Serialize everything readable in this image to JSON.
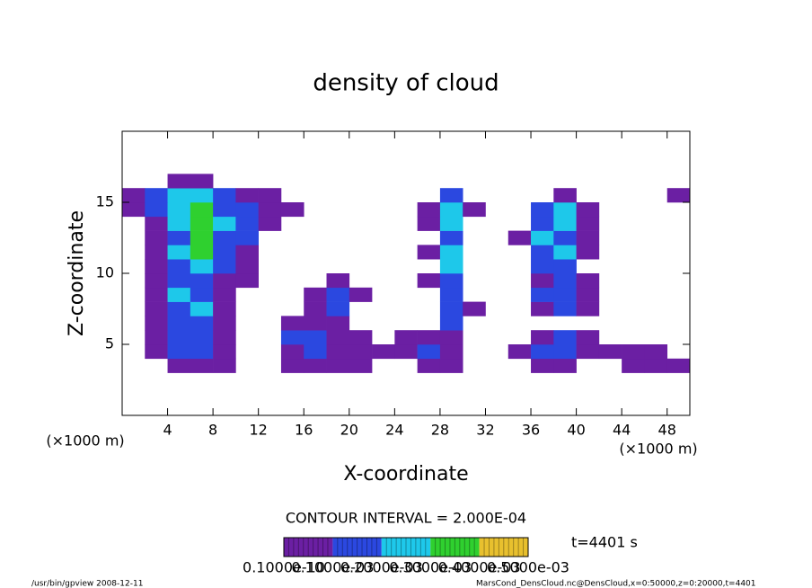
{
  "chart_data": {
    "type": "contour",
    "title": "density of cloud",
    "xlabel": "X-coordinate",
    "ylabel": "Z-coordinate",
    "x_unit": "(×1000 m)",
    "y_unit": "(×1000 m)",
    "xlim": [
      0,
      50
    ],
    "ylim": [
      0,
      20
    ],
    "xticks": [
      4,
      8,
      12,
      16,
      20,
      24,
      28,
      32,
      36,
      40,
      44,
      48
    ],
    "yticks": [
      5,
      10,
      15
    ],
    "contour_interval": "CONTOUR INTERVAL = 2.000E-04",
    "time_label": "t=4401 s",
    "levels": [
      {
        "value": 1e-11,
        "label": "0.1000e-10"
      },
      {
        "value": 0.0001,
        "label": "0.1000e-03"
      },
      {
        "value": 0.0002,
        "label": "0.2000e-03"
      },
      {
        "value": 0.0003,
        "label": "0.3000e-03"
      },
      {
        "value": 0.0004,
        "label": "0.4000e-03"
      },
      {
        "value": 0.0005,
        "label": "0.5000e-03"
      }
    ],
    "colors": [
      "#6b1fa3",
      "#2b48e0",
      "#1ec8ea",
      "#2fd02f",
      "#e8c02e"
    ],
    "footer_left": "/usr/bin/gpview   2008-12-11",
    "footer_right": "MarsCond_DensCloud.nc@DensCloud,x=0:50000,z=0:20000,t=4401",
    "field": [
      [
        0,
        0,
        0,
        0,
        0,
        0,
        0,
        0,
        0,
        0,
        0,
        0,
        0,
        0,
        0,
        0,
        0,
        0,
        0,
        0,
        0,
        0,
        0,
        0,
        0
      ],
      [
        0,
        0,
        0,
        0,
        0,
        0,
        0,
        0,
        0,
        0,
        0,
        0,
        0,
        0,
        0,
        0,
        0,
        0,
        0,
        0,
        0,
        0,
        0,
        0,
        0
      ],
      [
        0,
        0,
        0,
        0,
        0,
        0,
        0,
        0,
        0,
        0,
        0,
        0,
        0,
        0,
        0,
        0,
        0,
        0,
        0,
        0,
        0,
        0,
        0,
        0,
        0
      ],
      [
        0,
        0,
        5e-05,
        5e-05,
        5e-05,
        0,
        0,
        5e-05,
        5e-05,
        5e-05,
        5e-05,
        0,
        0,
        5e-05,
        5e-05,
        0,
        0,
        0,
        5e-05,
        5e-05,
        0,
        0,
        5e-05,
        5e-05,
        5e-05
      ],
      [
        0,
        5e-05,
        0.00015,
        0.00015,
        5e-05,
        0,
        0,
        5e-05,
        0.00015,
        5e-05,
        5e-05,
        5e-05,
        5e-05,
        0.00015,
        5e-05,
        0,
        0,
        5e-05,
        0.00015,
        0.00015,
        5e-05,
        5e-05,
        5e-05,
        5e-05,
        0
      ],
      [
        0,
        5e-05,
        0.00015,
        0.00015,
        5e-05,
        0,
        0,
        0.00015,
        0.00015,
        5e-05,
        5e-05,
        0,
        5e-05,
        5e-05,
        5e-05,
        0,
        0,
        0,
        5e-05,
        0.00015,
        5e-05,
        0,
        0,
        0,
        0
      ],
      [
        0,
        5e-05,
        0.00015,
        0.00015,
        5e-05,
        0,
        0,
        5e-05,
        5e-05,
        5e-05,
        0,
        0,
        0,
        0,
        0.00015,
        0,
        0,
        0,
        0,
        0,
        0,
        0,
        0,
        0,
        0
      ],
      [
        0,
        5e-05,
        0.00015,
        0.00025,
        5e-05,
        0,
        0,
        0,
        5e-05,
        0.00015,
        0,
        0,
        0,
        0,
        0.00015,
        5e-05,
        0,
        0,
        5e-05,
        0.00015,
        5e-05,
        0,
        0,
        0,
        0
      ],
      [
        0,
        5e-05,
        0.00025,
        0.00015,
        5e-05,
        0,
        0,
        0,
        5e-05,
        0.00015,
        5e-05,
        0,
        0,
        0,
        0.00015,
        0,
        0,
        0,
        0.00015,
        0.00015,
        5e-05,
        0,
        0,
        0,
        0
      ],
      [
        0,
        5e-05,
        0.00015,
        0.00015,
        5e-05,
        5e-05,
        0,
        0,
        0,
        5e-05,
        0,
        0,
        0,
        5e-05,
        0.00015,
        0,
        0,
        0,
        5e-05,
        0.00015,
        5e-05,
        0,
        0,
        0,
        0
      ],
      [
        0,
        5e-05,
        0.00015,
        0.00025,
        0.00015,
        5e-05,
        0,
        0,
        0,
        0,
        0,
        0,
        0,
        0,
        0.00025,
        0,
        0,
        0,
        0.00015,
        0.00015,
        0,
        0,
        0,
        0,
        0
      ],
      [
        0,
        5e-05,
        0.00025,
        0.00035,
        0.00015,
        5e-05,
        0,
        0,
        0,
        0,
        0,
        0,
        0,
        5e-05,
        0.00025,
        0,
        0,
        0,
        0.00015,
        0.00025,
        5e-05,
        0,
        0,
        0,
        0
      ],
      [
        0,
        5e-05,
        0.00015,
        0.00035,
        0.00015,
        0.00015,
        0,
        0,
        0,
        0,
        0,
        0,
        0,
        0,
        0.00015,
        0,
        0,
        5e-05,
        0.00025,
        0.00015,
        5e-05,
        0,
        0,
        0,
        0
      ],
      [
        0,
        5e-05,
        0.00025,
        0.00035,
        0.00025,
        0.00015,
        5e-05,
        0,
        0,
        0,
        0,
        0,
        0,
        5e-05,
        0.00025,
        0,
        0,
        0,
        0.00015,
        0.00025,
        5e-05,
        0,
        0,
        0,
        0
      ],
      [
        5e-05,
        0.00015,
        0.00025,
        0.00035,
        0.00015,
        0.00015,
        5e-05,
        5e-05,
        0,
        0,
        0,
        0,
        0,
        5e-05,
        0.00025,
        5e-05,
        0,
        0,
        0.00015,
        0.00025,
        5e-05,
        0,
        0,
        0,
        0
      ],
      [
        5e-05,
        0.00015,
        0.00025,
        0.00025,
        0.00015,
        5e-05,
        5e-05,
        0,
        0,
        0,
        0,
        0,
        0,
        0,
        0.00015,
        0,
        0,
        0,
        0,
        5e-05,
        0,
        0,
        0,
        0,
        5e-05
      ],
      [
        0,
        0,
        5e-05,
        5e-05,
        0,
        0,
        0,
        0,
        0,
        0,
        0,
        0,
        0,
        0,
        0,
        0,
        0,
        0,
        0,
        0,
        0,
        0,
        0,
        0,
        0
      ],
      [
        0,
        0,
        0,
        0,
        0,
        0,
        0,
        0,
        0,
        0,
        0,
        0,
        0,
        0,
        0,
        0,
        0,
        0,
        0,
        0,
        0,
        0,
        0,
        0,
        0
      ],
      [
        0,
        0,
        0,
        0,
        0,
        0,
        0,
        0,
        0,
        0,
        0,
        0,
        0,
        0,
        0,
        0,
        0,
        0,
        0,
        0,
        0,
        0,
        0,
        0,
        0
      ],
      [
        0,
        0,
        0,
        0,
        0,
        0,
        0,
        0,
        0,
        0,
        0,
        0,
        0,
        0,
        0,
        0,
        0,
        0,
        0,
        0,
        0,
        0,
        0,
        0,
        0
      ]
    ]
  }
}
